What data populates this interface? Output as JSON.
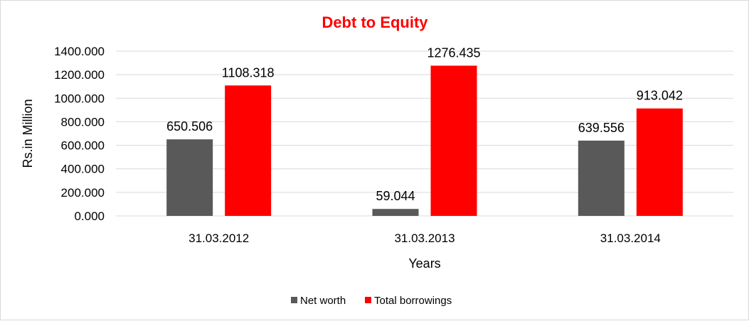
{
  "chart_data": {
    "type": "bar",
    "title": "Debt to Equity",
    "xlabel": "Years",
    "ylabel": "Rs.in Million",
    "categories": [
      "31.03.2012",
      "31.03.2013",
      "31.03.2014"
    ],
    "series": [
      {
        "name": "Net worth",
        "color": "#595959",
        "values": [
          650.506,
          59.044,
          639.556
        ],
        "labels": [
          "650.506",
          "59.044",
          "639.556"
        ]
      },
      {
        "name": "Total borrowings",
        "color": "#ff0000",
        "values": [
          1108.318,
          1276.435,
          913.042
        ],
        "labels": [
          "1108.318",
          "1276.435",
          "913.042"
        ]
      }
    ],
    "ylim": [
      0,
      1400
    ],
    "yticks": [
      "0.000",
      "200.000",
      "400.000",
      "600.000",
      "800.000",
      "1000.000",
      "1200.000",
      "1400.000"
    ],
    "grid": true,
    "legend_position": "bottom",
    "title_color": "#ff0000"
  }
}
